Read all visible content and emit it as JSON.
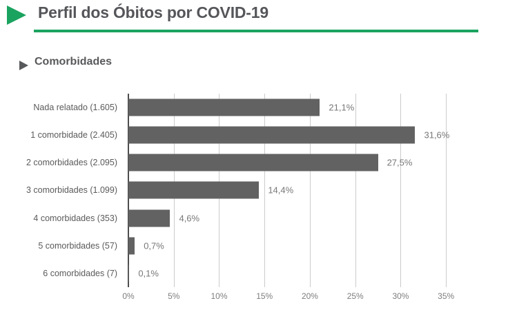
{
  "page": {
    "title": "Perfil dos Óbitos por COVID-19",
    "section_title": "Comorbidades",
    "colors": {
      "accent_green": "#1aa35f",
      "title_gray": "#55565a",
      "bar_gray": "#626262"
    }
  },
  "chart_data": {
    "type": "bar",
    "orientation": "horizontal",
    "title": "Comorbidades",
    "categories": [
      "Nada relatado (1.605)",
      "1 comorbidade (2.405)",
      "2 comorbidades (2.095)",
      "3 comorbidades (1.099)",
      "4 comorbidades (353)",
      "5 comorbidades (57)",
      "6 comorbidades (7)"
    ],
    "counts": [
      1605,
      2405,
      2095,
      1099,
      353,
      57,
      7
    ],
    "values": [
      21.1,
      31.6,
      27.5,
      14.4,
      4.6,
      0.7,
      0.1
    ],
    "value_labels": [
      "21,1%",
      "31,6%",
      "27,5%",
      "14,4%",
      "4,6%",
      "0,7%",
      "0,1%"
    ],
    "xlabel": "",
    "ylabel": "",
    "xlim": [
      0,
      39.7
    ],
    "grid": true,
    "legend": false,
    "bar_color": "#626262",
    "x_ticks": [
      {
        "value": 0,
        "label": "0%"
      },
      {
        "value": 5,
        "label": "5%"
      },
      {
        "value": 10,
        "label": "10%"
      },
      {
        "value": 15,
        "label": "15%"
      },
      {
        "value": 20,
        "label": "20%"
      },
      {
        "value": 25,
        "label": "25%"
      },
      {
        "value": 30,
        "label": "30%"
      },
      {
        "value": 35,
        "label": "35%"
      }
    ]
  }
}
